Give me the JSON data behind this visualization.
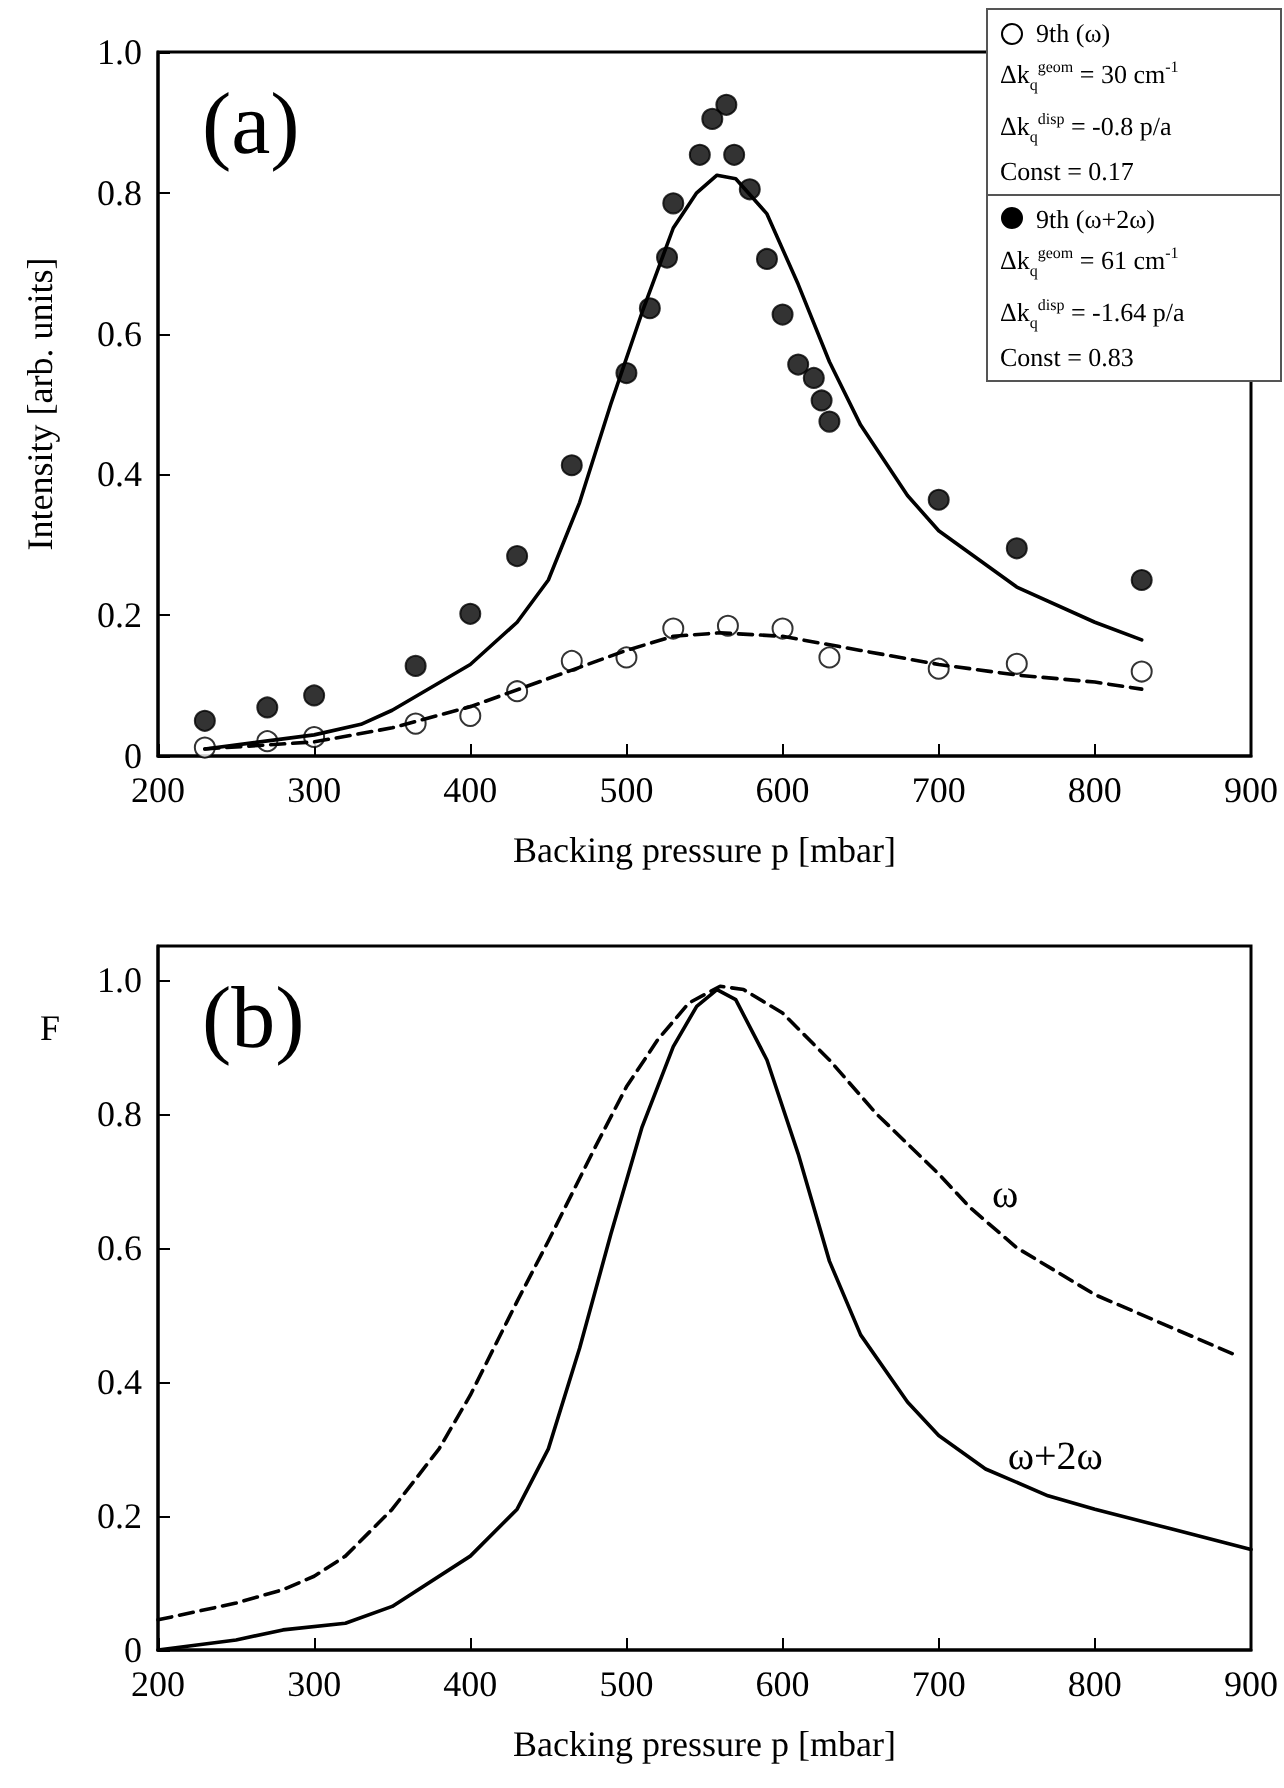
{
  "chart_data": [
    {
      "type": "scatter",
      "xlabel": "Backing pressure p [mbar]",
      "ylabel": "Intensity [arb. units]",
      "xlim": [
        200,
        900
      ],
      "xticks": [
        200,
        300,
        400,
        500,
        600,
        700,
        800,
        900
      ],
      "ylim": [
        0,
        1
      ],
      "yticks": [
        0,
        0.2,
        0.4,
        0.6,
        0.8,
        {
          "value": 1,
          "label": "1.0"
        }
      ],
      "grid": false,
      "legend": "top right",
      "annotations": [
        "(a)",
        "Δk$_{q}$$^{geom}$ = 30 cm$^{-1}$",
        "Δk$_{q}$$^{disp}$ = -0.8 p/a",
        "Const = 0.17",
        "Δk$_{q}$$^{geom}$ = 61 cm$^{-1}$",
        "Δk$_{q}$$^{disp}$ = -1.64 p/a",
        "Const = 0.83"
      ],
      "series": [
        {
          "name": "9th (ω)",
          "marker": "circle",
          "color": "#ffffff",
          "x": [
            230,
            270,
            300,
            365,
            400,
            430,
            465,
            500,
            530,
            565,
            600,
            630,
            700,
            750,
            830
          ],
          "values": [
            0.012,
            0.021,
            0.027,
            0.046,
            0.057,
            0.092,
            0.135,
            0.14,
            0.181,
            0.185,
            0.181,
            0.14,
            0.124,
            0.131,
            0.12
          ]
        },
        {
          "name": "9th (ω+2ω)",
          "marker": "circle",
          "color": "#000000",
          "x": [
            230,
            270,
            300,
            365,
            400,
            430,
            465,
            500,
            515,
            526,
            530,
            547,
            555,
            564,
            569,
            579,
            590,
            600,
            610,
            620,
            625,
            630,
            700,
            750,
            830
          ],
          "values": [
            0.05,
            0.069,
            0.086,
            0.128,
            0.202,
            0.284,
            0.413,
            0.544,
            0.636,
            0.708,
            0.785,
            0.854,
            0.905,
            0.925,
            0.854,
            0.805,
            0.706,
            0.627,
            0.556,
            0.537,
            0.505,
            0.475,
            0.364,
            0.295,
            0.25
          ]
        },
        {
          "type": "line",
          "marker": "none",
          "line_style": "dashed",
          "color": "#000000",
          "x": [
            230,
            300,
            350,
            400,
            450,
            500,
            530,
            560,
            600,
            650,
            700,
            750,
            800,
            830
          ],
          "values": [
            0.01,
            0.02,
            0.04,
            0.07,
            0.11,
            0.15,
            0.17,
            0.175,
            0.17,
            0.15,
            0.13,
            0.115,
            0.105,
            0.095
          ]
        },
        {
          "type": "line",
          "marker": "none",
          "line_style": "solid",
          "color": "#000000",
          "x": [
            230,
            300,
            330,
            350,
            400,
            430,
            450,
            470,
            490,
            510,
            530,
            545,
            558,
            570,
            590,
            610,
            630,
            650,
            680,
            700,
            750,
            800,
            830
          ],
          "values": [
            0.01,
            0.03,
            0.045,
            0.065,
            0.13,
            0.19,
            0.25,
            0.36,
            0.5,
            0.63,
            0.75,
            0.8,
            0.825,
            0.82,
            0.77,
            0.67,
            0.56,
            0.47,
            0.37,
            0.32,
            0.24,
            0.19,
            0.165
          ]
        }
      ]
    },
    {
      "type": "line",
      "xlabel": "Backing pressure p [mbar]",
      "ylabel": "F",
      "xlim": [
        200,
        900
      ],
      "xticks": [
        200,
        300,
        400,
        500,
        600,
        700,
        800,
        900
      ],
      "ylim": [
        0,
        1.05
      ],
      "yticks": [
        0,
        0.2,
        0.4,
        0.6,
        0.8,
        {
          "value": 1,
          "label": "1.0"
        }
      ],
      "grid": false,
      "marker": "none",
      "annotations": [
        "(b)"
      ],
      "series": [
        {
          "name": "ω",
          "line_style": "dashed",
          "color": "#000000",
          "x": [
            200,
            250,
            280,
            300,
            320,
            350,
            380,
            400,
            430,
            450,
            480,
            500,
            520,
            540,
            560,
            575,
            600,
            630,
            660,
            700,
            720,
            750,
            800,
            850,
            890
          ],
          "values": [
            0.045,
            0.07,
            0.09,
            0.11,
            0.14,
            0.21,
            0.3,
            0.38,
            0.52,
            0.61,
            0.75,
            0.84,
            0.91,
            0.965,
            0.99,
            0.985,
            0.95,
            0.88,
            0.8,
            0.71,
            0.66,
            0.6,
            0.53,
            0.48,
            0.44
          ]
        },
        {
          "name": "ω+2ω",
          "line_style": "solid",
          "color": "#000000",
          "x": [
            200,
            250,
            280,
            320,
            350,
            400,
            430,
            450,
            470,
            490,
            510,
            530,
            545,
            558,
            570,
            590,
            610,
            630,
            650,
            680,
            700,
            730,
            770,
            800,
            850,
            900
          ],
          "values": [
            0.0,
            0.015,
            0.03,
            0.04,
            0.065,
            0.14,
            0.21,
            0.3,
            0.45,
            0.62,
            0.78,
            0.9,
            0.96,
            0.985,
            0.97,
            0.88,
            0.74,
            0.58,
            0.47,
            0.37,
            0.32,
            0.27,
            0.23,
            0.21,
            0.18,
            0.15
          ]
        }
      ]
    }
  ]
}
